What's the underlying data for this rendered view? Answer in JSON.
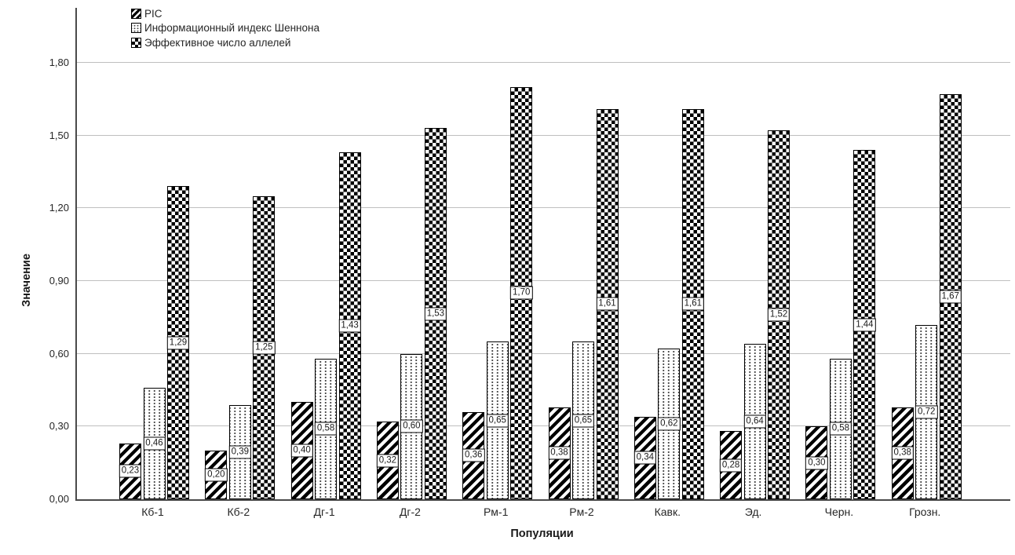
{
  "chart_data": {
    "type": "bar",
    "title": "",
    "xlabel": "Популяции",
    "ylabel": "Значение",
    "categories": [
      "Кб-1",
      "Кб-2",
      "Дг-1",
      "Дг-2",
      "Рм-1",
      "Рм-2",
      "Кавк.",
      "Эд.",
      "Черн.",
      "Грозн."
    ],
    "series": [
      {
        "name": "PIC",
        "pattern": "diagonal-stripes",
        "values": [
          0.23,
          0.2,
          0.4,
          0.32,
          0.36,
          0.38,
          0.34,
          0.28,
          0.3,
          0.38
        ],
        "labels": [
          "0,23",
          "0,20",
          "0,40",
          "0,32",
          "0,36",
          "0,38",
          "0,34",
          "0,28",
          "0,30",
          "0,38"
        ]
      },
      {
        "name": "Информационный индекс Шеннона",
        "pattern": "dotted-columns",
        "values": [
          0.46,
          0.39,
          0.58,
          0.6,
          0.65,
          0.65,
          0.62,
          0.64,
          0.58,
          0.72
        ],
        "labels": [
          "0,46",
          "0,39",
          "0,58",
          "0,60",
          "0,65",
          "0,65",
          "0,62",
          "0,64",
          "0,58",
          "0,72"
        ]
      },
      {
        "name": "Эффективное число аллелей",
        "pattern": "checkerboard",
        "values": [
          1.29,
          1.25,
          1.43,
          1.53,
          1.7,
          1.61,
          1.61,
          1.52,
          1.44,
          1.67
        ],
        "labels": [
          "1,29",
          "1,25",
          "1,43",
          "1,53",
          "1,70",
          "1,61",
          "1,61",
          "1,52",
          "1,44",
          "1,67"
        ]
      }
    ],
    "ylim": [
      0,
      1.8
    ],
    "yticks": [
      {
        "value": 0.0,
        "label": "0,00"
      },
      {
        "value": 0.3,
        "label": "0,30"
      },
      {
        "value": 0.6,
        "label": "0,60"
      },
      {
        "value": 0.9,
        "label": "0,90"
      },
      {
        "value": 1.2,
        "label": "1,20"
      },
      {
        "value": 1.5,
        "label": "1,50"
      },
      {
        "value": 1.8,
        "label": "1,80"
      }
    ],
    "grid": true,
    "legend_position": "top-left",
    "bar_value_labels": true,
    "decimal_separator": ","
  },
  "colors": {
    "ink": "#000000",
    "axis": "#4a4a4a",
    "grid": "#bfbfbf",
    "text": "#262626",
    "background": "#ffffff"
  }
}
